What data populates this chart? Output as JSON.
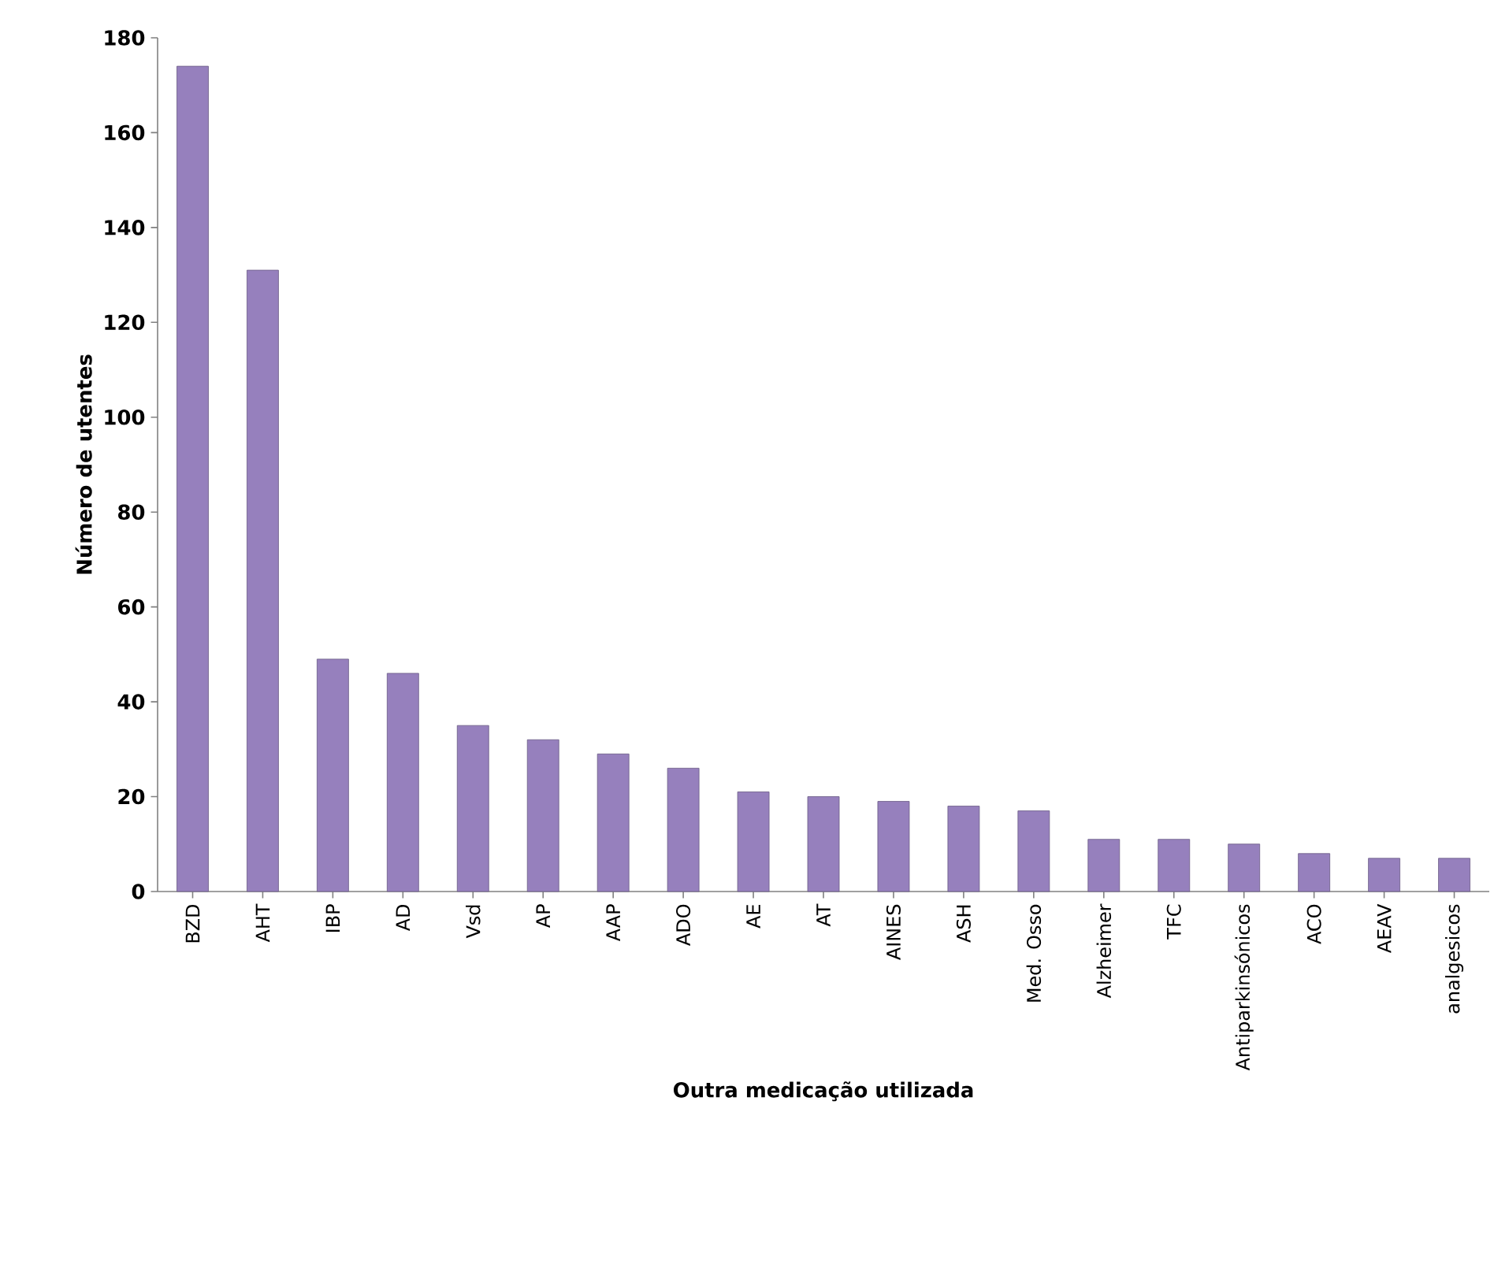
{
  "chart_data": {
    "type": "bar",
    "xlabel": "Outra medicação utilizada",
    "ylabel": "Número de utentes",
    "categories": [
      "BZD",
      "AHT",
      "IBP",
      "AD",
      "Vsd",
      "AP",
      "AAP",
      "ADO",
      "AE",
      "AT",
      "AINES",
      "ASH",
      "Med. Osso",
      "Alzheimer",
      "TFC",
      "Antiparkinsónicos",
      "ACO",
      "AEAV",
      "analgesicos"
    ],
    "values": [
      174,
      131,
      49,
      46,
      35,
      32,
      29,
      26,
      21,
      20,
      19,
      18,
      17,
      11,
      11,
      10,
      8,
      7,
      7
    ],
    "color": "#9680bd",
    "ylim": [
      0,
      180
    ],
    "yticks": [
      0,
      20,
      40,
      60,
      80,
      100,
      120,
      140,
      160,
      180
    ],
    "grid": false
  }
}
